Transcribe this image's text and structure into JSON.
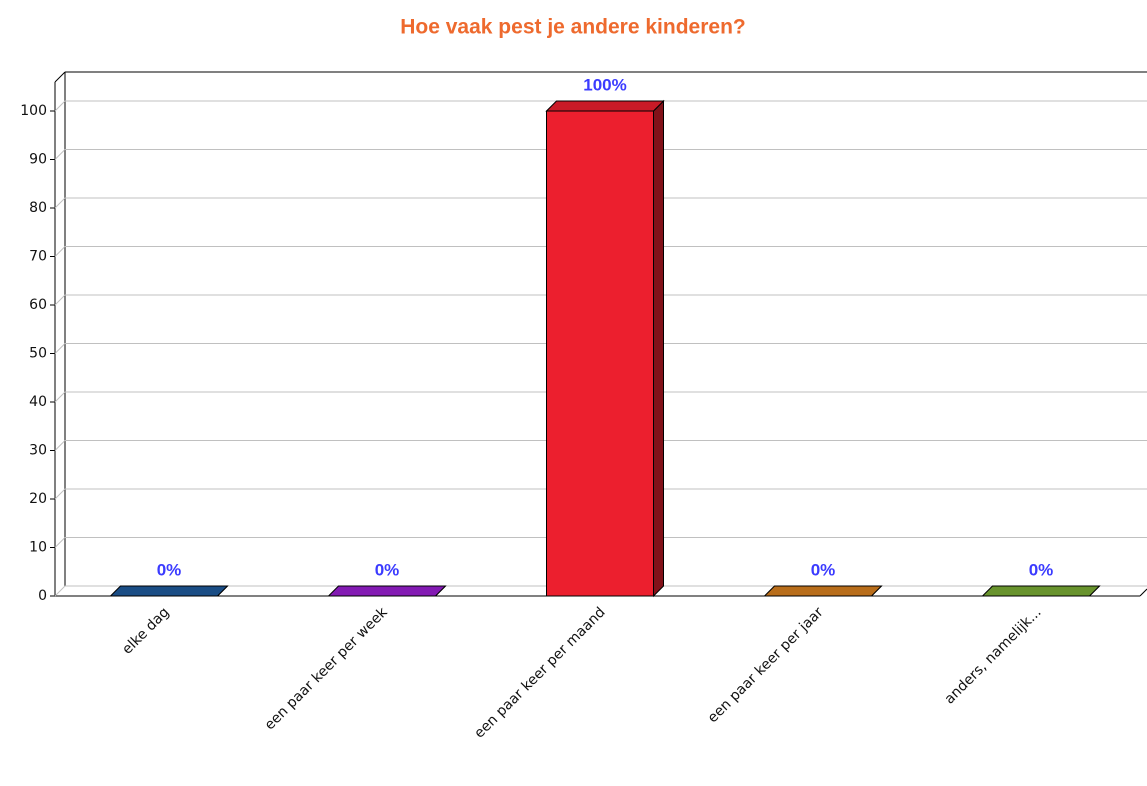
{
  "chart_data": {
    "type": "bar3d",
    "title": "Hoe vaak pest je andere kinderen?",
    "categories": [
      "elke dag",
      "een paar keer per week",
      "een paar keer per maand",
      "een paar keer per jaar",
      "anders, namelijk..."
    ],
    "values": [
      0,
      0,
      100,
      0,
      0
    ],
    "value_labels": [
      "0%",
      "0%",
      "100%",
      "0%",
      "0%"
    ],
    "colors": [
      "#1e5a9c",
      "#9a1ed2",
      "#ec1f2e",
      "#d9801f",
      "#7aad35"
    ],
    "ylim": [
      0,
      100
    ],
    "yticks": [
      0,
      10,
      20,
      30,
      40,
      50,
      60,
      70,
      80,
      90,
      100
    ],
    "grid": true
  }
}
